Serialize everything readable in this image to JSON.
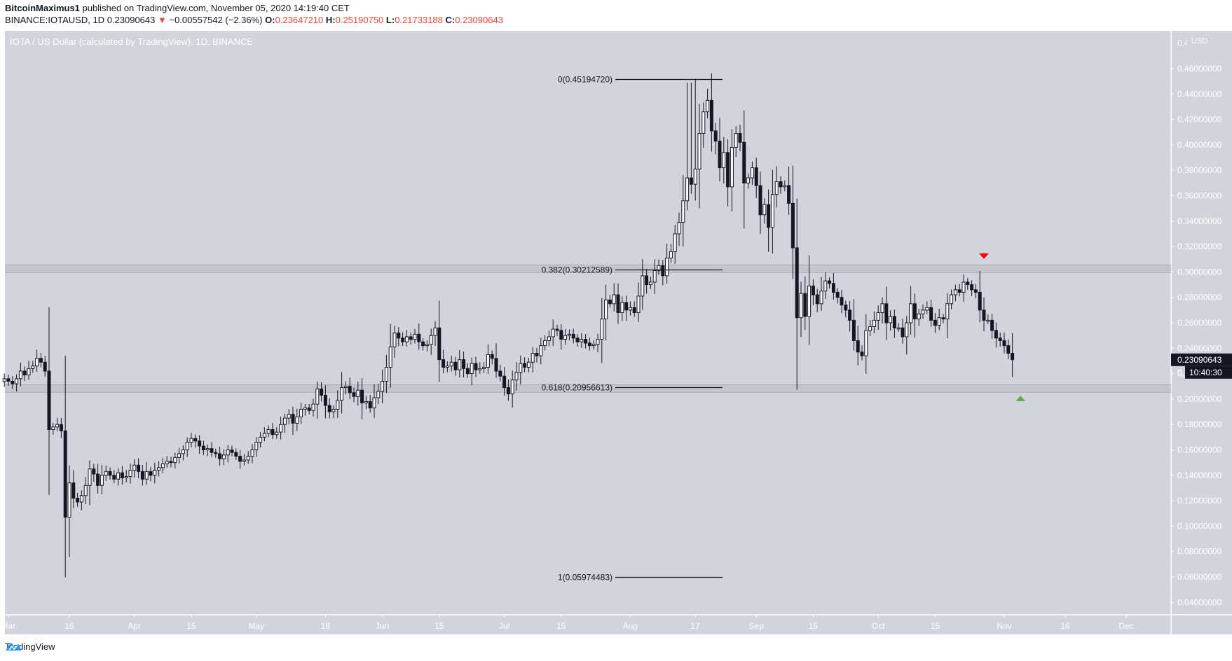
{
  "header": {
    "author": "BitcoinMaximus1",
    "published_text": "published on TradingView.com, November 05, 2020 14:19:40 CET",
    "symbol": "BINANCE:IOTAUSD, 1D",
    "last_price": "0.23090643",
    "change_arrow": "▼",
    "change": "−0.00557542 (−2.36%)",
    "o_label": "O:",
    "o_value": "0.23647210",
    "h_label": "H:",
    "h_value": "0.25190750",
    "l_label": "L:",
    "l_value": "0.21733188",
    "c_label": "C:",
    "c_value": "0.23090643"
  },
  "chart_title": "IOTA / US Dollar (calculated by TradingView), 1D, BINANCE",
  "currency_label": "USD",
  "price_badge": "0.23090643",
  "countdown_badge": "10:40:30",
  "footer": {
    "brand": "TradingView"
  },
  "colors": {
    "background": "#d1d4dc",
    "candle_up_fill": "#ffffff",
    "candle_down_fill": "#131722",
    "candle_outline": "#131722",
    "zone_fill": "#c3c6ce",
    "zone_border": "#a9acb3",
    "axis_text": "#ffffff",
    "arrow_down": "#ff0000",
    "arrow_up": "#6aa84f",
    "badge_bg": "#131722",
    "tv_blue": "#2196f3"
  },
  "chart_data": {
    "type": "candlestick",
    "title": "IOTA / US Dollar (calculated by TradingView), 1D, BINANCE",
    "xlabel": "",
    "ylabel": "USD",
    "ylim": [
      0.03,
      0.475
    ],
    "grid": false,
    "x_ticks": [
      {
        "label": "Mar",
        "day": 0
      },
      {
        "label": "16",
        "day": 15
      },
      {
        "label": "Apr",
        "day": 31
      },
      {
        "label": "15",
        "day": 45
      },
      {
        "label": "May",
        "day": 61
      },
      {
        "label": "18",
        "day": 78
      },
      {
        "label": "Jun",
        "day": 92
      },
      {
        "label": "15",
        "day": 106
      },
      {
        "label": "Jul",
        "day": 122
      },
      {
        "label": "15",
        "day": 136
      },
      {
        "label": "Aug",
        "day": 153
      },
      {
        "label": "17",
        "day": 169
      },
      {
        "label": "Sep",
        "day": 184
      },
      {
        "label": "15",
        "day": 198
      },
      {
        "label": "Oct",
        "day": 214
      },
      {
        "label": "15",
        "day": 228
      },
      {
        "label": "Nov",
        "day": 245
      },
      {
        "label": "16",
        "day": 260
      },
      {
        "label": "Dec",
        "day": 275
      }
    ],
    "y_ticks": [
      "0.46000000",
      "0.44000000",
      "0.42000000",
      "0.40000000",
      "0.38000000",
      "0.36000000",
      "0.34000000",
      "0.32000000",
      "0.30000000",
      "0.28000000",
      "0.26000000",
      "0.24000000",
      "0.22000000",
      "0.20000000",
      "0.18000000",
      "0.16000000",
      "0.14000000",
      "0.12000000",
      "0.10000000",
      "0.08000000",
      "0.06000000",
      "0.04000000"
    ],
    "fib_levels": [
      {
        "label": "0(0.45194720)",
        "value": 0.4519472
      },
      {
        "label": "0.382(0.30212589)",
        "value": 0.30212589
      },
      {
        "label": "0.618(0.20956613)",
        "value": 0.20956613
      },
      {
        "label": "1(0.05974483)",
        "value": 0.05974483
      }
    ],
    "zones": [
      {
        "name": "resistance",
        "from": 0.2995,
        "to": 0.3055
      },
      {
        "name": "support",
        "from": 0.2053,
        "to": 0.2113
      }
    ],
    "markers": [
      {
        "type": "arrow-down",
        "day": 240,
        "value": 0.3125,
        "color": "#ff0000"
      },
      {
        "type": "arrow-up",
        "day": 249,
        "value": 0.2005,
        "color": "#6aa84f"
      }
    ],
    "first_day": "2020-02-29",
    "closes": [
      0.216,
      0.214,
      0.212,
      0.216,
      0.222,
      0.219,
      0.224,
      0.226,
      0.232,
      0.229,
      0.222,
      0.176,
      0.178,
      0.18,
      0.175,
      0.107,
      0.134,
      0.122,
      0.119,
      0.124,
      0.132,
      0.145,
      0.141,
      0.132,
      0.14,
      0.143,
      0.14,
      0.137,
      0.142,
      0.138,
      0.139,
      0.144,
      0.148,
      0.143,
      0.137,
      0.143,
      0.14,
      0.144,
      0.146,
      0.149,
      0.151,
      0.15,
      0.154,
      0.157,
      0.16,
      0.166,
      0.169,
      0.167,
      0.163,
      0.16,
      0.161,
      0.158,
      0.157,
      0.153,
      0.156,
      0.16,
      0.158,
      0.155,
      0.151,
      0.152,
      0.155,
      0.16,
      0.166,
      0.17,
      0.173,
      0.176,
      0.172,
      0.174,
      0.18,
      0.185,
      0.188,
      0.181,
      0.186,
      0.192,
      0.193,
      0.191,
      0.196,
      0.208,
      0.203,
      0.195,
      0.19,
      0.192,
      0.199,
      0.209,
      0.21,
      0.205,
      0.202,
      0.207,
      0.197,
      0.198,
      0.193,
      0.201,
      0.206,
      0.214,
      0.225,
      0.241,
      0.252,
      0.248,
      0.245,
      0.249,
      0.247,
      0.251,
      0.245,
      0.242,
      0.243,
      0.25,
      0.256,
      0.231,
      0.225,
      0.226,
      0.229,
      0.223,
      0.231,
      0.224,
      0.22,
      0.228,
      0.223,
      0.224,
      0.225,
      0.235,
      0.232,
      0.222,
      0.218,
      0.209,
      0.204,
      0.215,
      0.221,
      0.228,
      0.225,
      0.229,
      0.236,
      0.234,
      0.242,
      0.246,
      0.249,
      0.255,
      0.254,
      0.247,
      0.25,
      0.251,
      0.248,
      0.245,
      0.247,
      0.244,
      0.242,
      0.243,
      0.247,
      0.263,
      0.278,
      0.275,
      0.282,
      0.268,
      0.276,
      0.27,
      0.272,
      0.268,
      0.281,
      0.297,
      0.29,
      0.292,
      0.301,
      0.305,
      0.297,
      0.311,
      0.316,
      0.33,
      0.339,
      0.356,
      0.374,
      0.369,
      0.381,
      0.409,
      0.426,
      0.435,
      0.411,
      0.403,
      0.382,
      0.394,
      0.367,
      0.398,
      0.409,
      0.402,
      0.37,
      0.374,
      0.382,
      0.368,
      0.345,
      0.353,
      0.335,
      0.361,
      0.371,
      0.367,
      0.368,
      0.354,
      0.319,
      0.264,
      0.283,
      0.265,
      0.289,
      0.282,
      0.275,
      0.285,
      0.293,
      0.291,
      0.284,
      0.28,
      0.274,
      0.27,
      0.262,
      0.246,
      0.237,
      0.234,
      0.254,
      0.257,
      0.262,
      0.268,
      0.275,
      0.26,
      0.265,
      0.256,
      0.256,
      0.249,
      0.26,
      0.275,
      0.263,
      0.267,
      0.27,
      0.272,
      0.262,
      0.258,
      0.264,
      0.263,
      0.275,
      0.282,
      0.286,
      0.284,
      0.292,
      0.29,
      0.286,
      0.284,
      0.27,
      0.262,
      0.262,
      0.254,
      0.248,
      0.246,
      0.242,
      0.236,
      0.231
    ]
  }
}
